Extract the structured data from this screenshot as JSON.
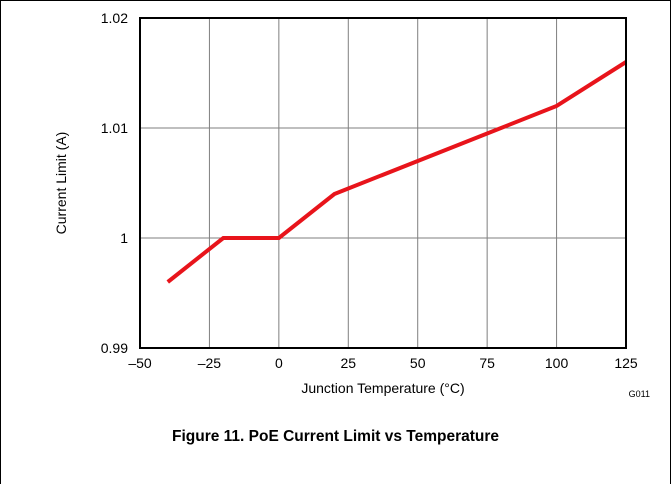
{
  "figure": {
    "caption": "Figure 11. PoE Current Limit vs Temperature",
    "code": "G011"
  },
  "chart_data": {
    "type": "line",
    "title": "",
    "xlabel": "Junction Temperature (°C)",
    "ylabel": "Current Limit (A)",
    "xlim": [
      -50,
      125
    ],
    "ylim": [
      0.99,
      1.02
    ],
    "x_ticks": [
      -50,
      -25,
      0,
      25,
      50,
      75,
      100,
      125
    ],
    "x_tick_labels": [
      "–50",
      "–25",
      "0",
      "25",
      "50",
      "75",
      "100",
      "125"
    ],
    "y_ticks": [
      0.99,
      1,
      1.01,
      1.02
    ],
    "y_tick_labels": [
      "0.99",
      "1",
      "1.01",
      "1.02"
    ],
    "grid": true,
    "series": [
      {
        "color": "#e8141b",
        "x": [
          -40,
          -20,
          0,
          20,
          100,
          125
        ],
        "y": [
          0.996,
          1.0,
          1.0,
          1.004,
          1.012,
          1.016
        ]
      }
    ]
  }
}
